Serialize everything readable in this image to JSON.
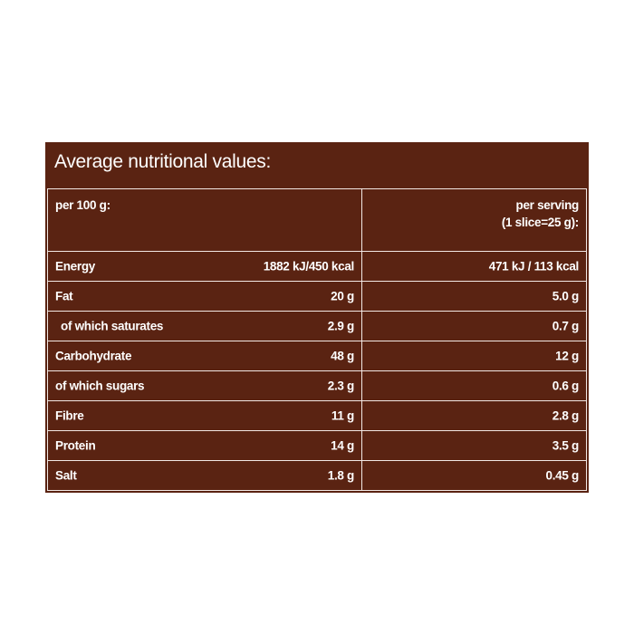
{
  "title": "Average nutritional values:",
  "table": {
    "header": {
      "per_100g": "per 100 g:",
      "per_serving": [
        "per serving",
        "(1 slice=25 g):"
      ]
    },
    "rows": [
      [
        "Energy",
        "1882 kJ/450 kcal",
        "471 kJ / 113 kcal"
      ],
      [
        "Fat",
        "20 g",
        "5.0 g"
      ],
      [
        "of which saturates",
        "2.9 g",
        "0.7 g"
      ],
      [
        "Carbohydrate",
        "48 g",
        "12 g"
      ],
      [
        "of which sugars",
        "2.3 g",
        "0.6 g"
      ],
      [
        "Fibre",
        "11 g",
        "2.8 g"
      ],
      [
        "Protein",
        "14 g",
        "3.5 g"
      ],
      [
        "Salt",
        "1.8 g",
        "0.45 g"
      ]
    ]
  }
}
